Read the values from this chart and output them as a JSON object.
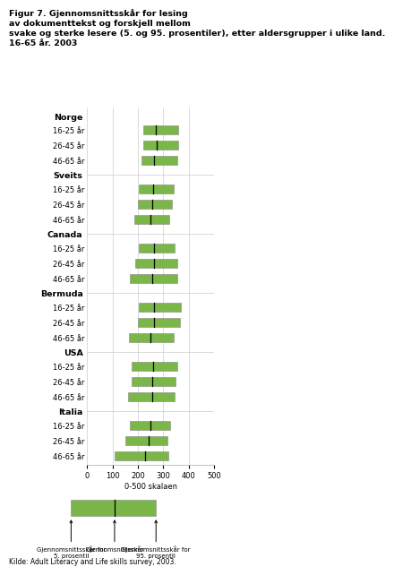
{
  "title_bold": "Figur 7. Gjennomsnittsskår for lesing\nav dokumenttekst og forskjell mellom\nsvake og sterke lesere (5. og 95. prosentiler), etter aldersgrupper i ulike land.\n16-65 år. 2003",
  "xlabel": "0-500 skalaen",
  "xticks": [
    0,
    100,
    200,
    300,
    400,
    500
  ],
  "xlim": [
    0,
    500
  ],
  "bar_color": "#7ab648",
  "bar_edge_color": "#888888",
  "mean_line_color": "#000000",
  "grid_color": "#cccccc",
  "source": "Kilde: Adult Literacy and Life skills survey, 2003.",
  "groups": [
    {
      "country": "Norge",
      "rows": [
        {
          "label": "16-25 år",
          "p5": 220,
          "mean": 270,
          "p95": 360
        },
        {
          "label": "26-45 år",
          "p5": 220,
          "mean": 275,
          "p95": 360
        },
        {
          "label": "46-65 år",
          "p5": 215,
          "mean": 265,
          "p95": 355
        }
      ]
    },
    {
      "country": "Sveits",
      "rows": [
        {
          "label": "16-25 år",
          "p5": 205,
          "mean": 260,
          "p95": 340
        },
        {
          "label": "26-45 år",
          "p5": 200,
          "mean": 258,
          "p95": 335
        },
        {
          "label": "46-65 år",
          "p5": 185,
          "mean": 248,
          "p95": 325
        }
      ]
    },
    {
      "country": "Canada",
      "rows": [
        {
          "label": "16-25 år",
          "p5": 205,
          "mean": 262,
          "p95": 345
        },
        {
          "label": "26-45 år",
          "p5": 190,
          "mean": 262,
          "p95": 355
        },
        {
          "label": "46-65 år",
          "p5": 170,
          "mean": 258,
          "p95": 355
        }
      ]
    },
    {
      "country": "Bermuda",
      "rows": [
        {
          "label": "16-25 år",
          "p5": 205,
          "mean": 265,
          "p95": 370
        },
        {
          "label": "26-45 år",
          "p5": 200,
          "mean": 262,
          "p95": 365
        },
        {
          "label": "46-65 år",
          "p5": 165,
          "mean": 248,
          "p95": 340
        }
      ]
    },
    {
      "country": "USA",
      "rows": [
        {
          "label": "16-25 år",
          "p5": 175,
          "mean": 260,
          "p95": 355
        },
        {
          "label": "26-45 år",
          "p5": 175,
          "mean": 258,
          "p95": 350
        },
        {
          "label": "46-65 år",
          "p5": 162,
          "mean": 255,
          "p95": 345
        }
      ]
    },
    {
      "country": "Italia",
      "rows": [
        {
          "label": "16-25 år",
          "p5": 168,
          "mean": 250,
          "p95": 328
        },
        {
          "label": "26-45 år",
          "p5": 150,
          "mean": 242,
          "p95": 315
        },
        {
          "label": "46-65 år",
          "p5": 110,
          "mean": 230,
          "p95": 320
        }
      ]
    }
  ],
  "legend_p5_text": "Gjennomsnittsskår for\n5. prosentil",
  "legend_mean_text": "Gjennomsnittsskår",
  "legend_p95_text": "Gjennomsnittsskår for\n95. prosentil",
  "legend_bar_p5": 150,
  "legend_bar_mean": 255,
  "legend_bar_p95": 355
}
